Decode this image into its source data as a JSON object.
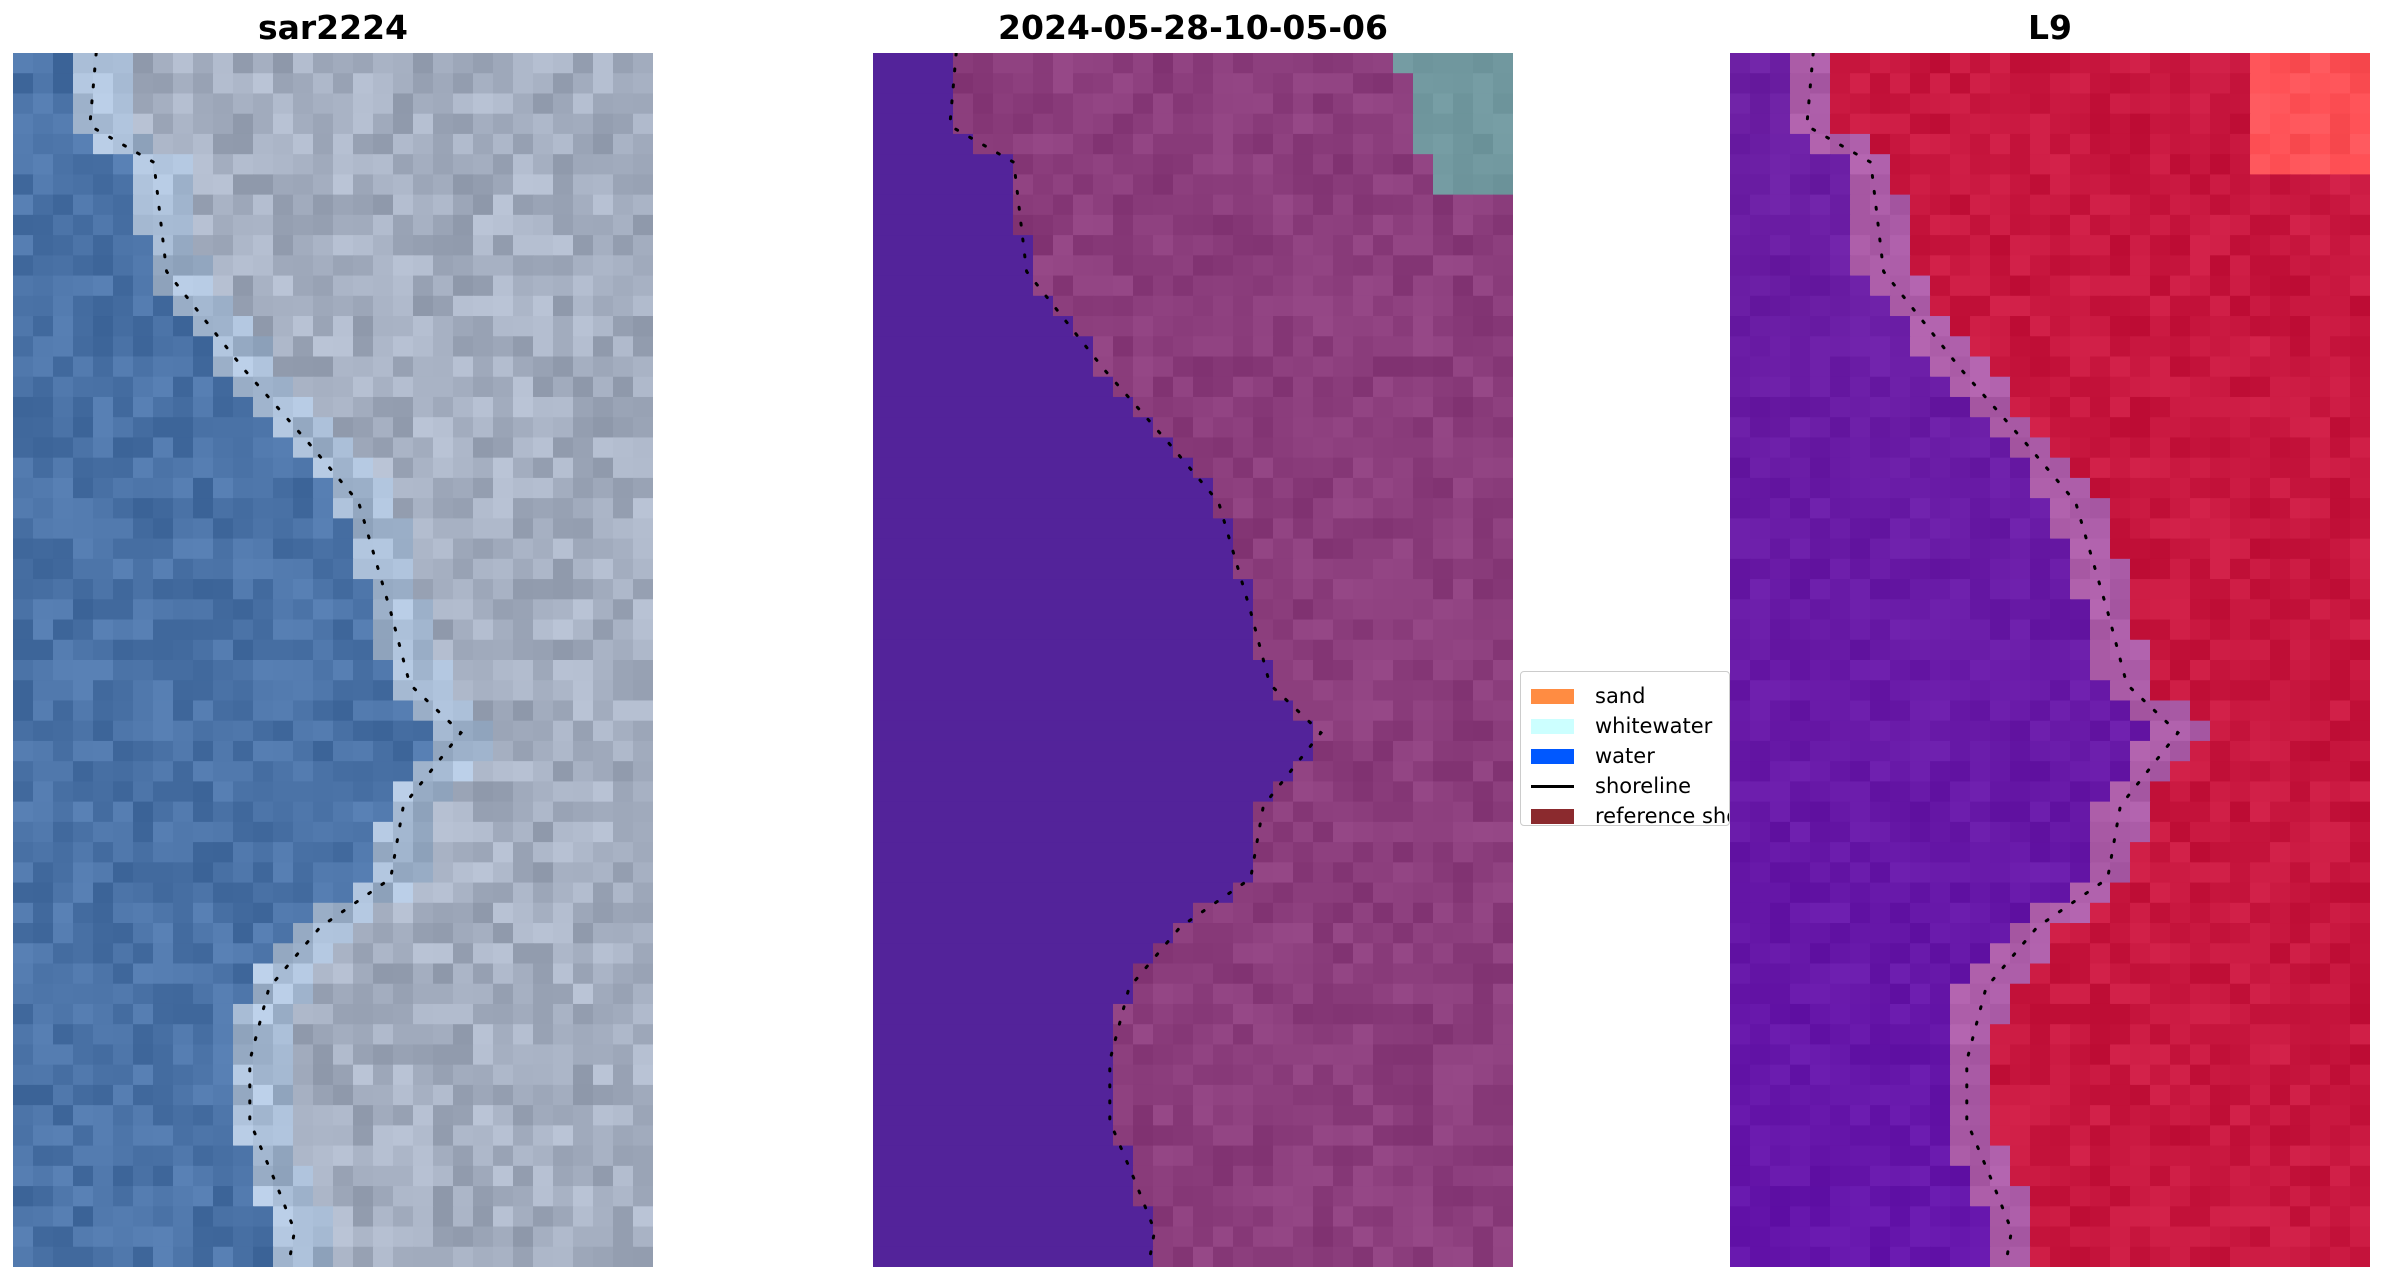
{
  "panels": [
    {
      "title": "sar2224",
      "kind": "rgb"
    },
    {
      "title": "2024-05-28-10-05-06",
      "kind": "classified"
    },
    {
      "title": "L9",
      "kind": "index"
    }
  ],
  "legend": {
    "items": [
      {
        "label": "sand",
        "color": "#ff8c42"
      },
      {
        "label": "whitewater",
        "color": "#ccffff"
      },
      {
        "label": "water",
        "color": "#0058ff"
      },
      {
        "label": "shoreline",
        "color": "#000000"
      },
      {
        "label": "reference sho",
        "color": "#8b2a2e"
      }
    ]
  },
  "colors": {
    "water_class": "#53239a",
    "land_class": "#8b3d7c",
    "whitewater_class": "#70979e",
    "rgb_water": "#4a72a6",
    "rgb_land": "#a4aec0",
    "index_water": "#6c1fa3",
    "index_land": "#c8173f"
  }
}
